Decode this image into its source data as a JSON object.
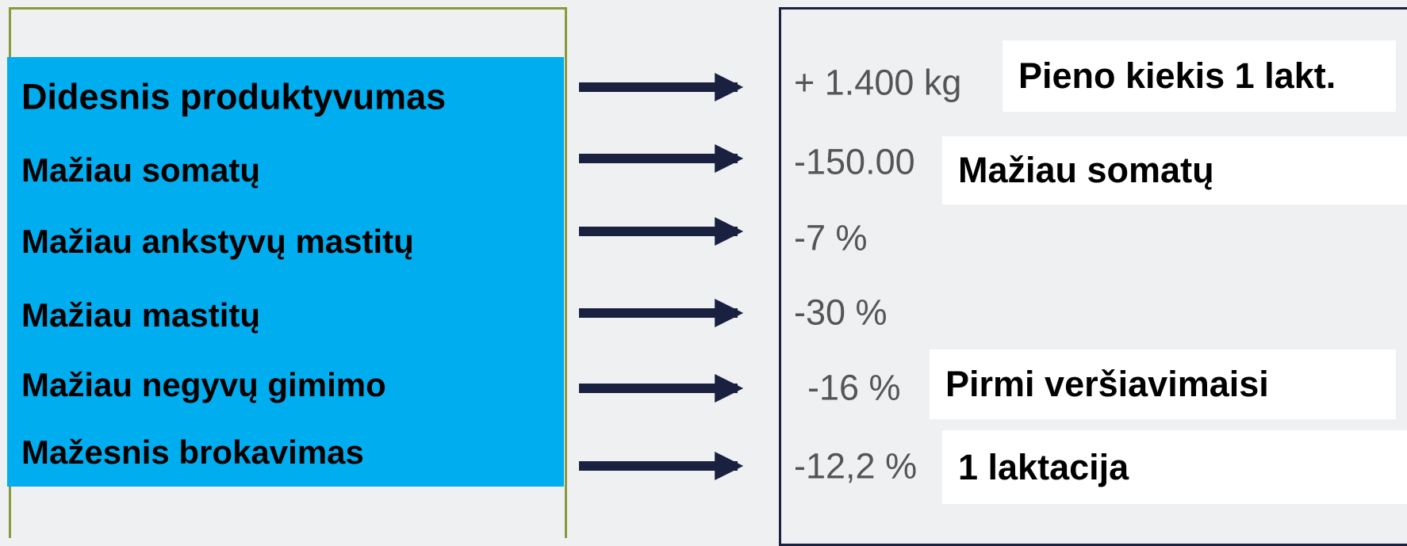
{
  "rows": [
    {
      "label": "Didesnis produktyvumas",
      "value": "+ 1.400 kg",
      "note": "Pieno kiekis 1 lakt."
    },
    {
      "label": "Mažiau somatų",
      "value": "-150.00",
      "note": "Mažiau somatų"
    },
    {
      "label": "Mažiau ankstyvų mastitų",
      "value": "-7 %"
    },
    {
      "label": "Mažiau mastitų",
      "value": "-30 %"
    },
    {
      "label": "Mažiau negyvų gimimo",
      "value": "-16 %",
      "note": "Pirmi veršiavimaisi"
    },
    {
      "label": "Mažesnis brokavimas",
      "value": "-12,2 %",
      "note": "1 laktacija"
    }
  ]
}
